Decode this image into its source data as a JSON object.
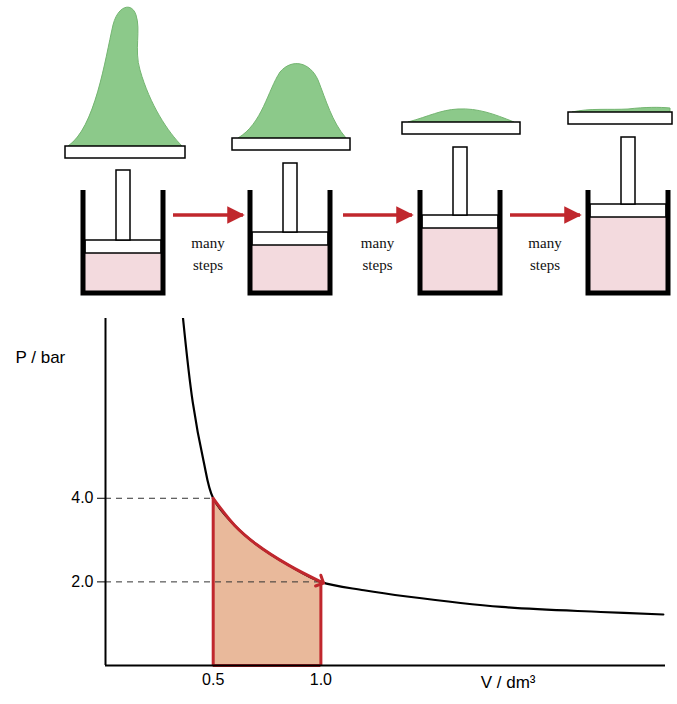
{
  "diagram": {
    "arrow_labels": [
      "many steps",
      "many steps",
      "many steps"
    ]
  },
  "chart_data": {
    "type": "line",
    "x_label": "V / dm³",
    "y_label": "P / bar",
    "xlim": [
      0,
      2.6
    ],
    "ylim": [
      0,
      8.3
    ],
    "xticks": [
      0.5,
      {
        "value": 1,
        "label": "1.0"
      }
    ],
    "yticks": [
      {
        "value": 4,
        "label": "4.0"
      },
      {
        "value": 2,
        "label": "2.0"
      }
    ],
    "x": [
      0.36,
      0.405,
      0.455,
      0.5,
      0.6,
      0.7,
      0.85,
      1.0,
      1.2,
      1.4,
      1.84,
      2.3,
      2.59
    ],
    "values": [
      8.3,
      6.3,
      4.9,
      4.0,
      3.35,
      2.9,
      2.4,
      2.0,
      1.8,
      1.65,
      1.4,
      1.28,
      1.22
    ],
    "color": "#000000",
    "area": {
      "x": [
        0.5,
        0.6,
        0.7,
        0.85,
        1.0
      ],
      "values": [
        4.0,
        3.35,
        2.9,
        2.4,
        2.0
      ],
      "color": "#e9b99b"
    }
  }
}
